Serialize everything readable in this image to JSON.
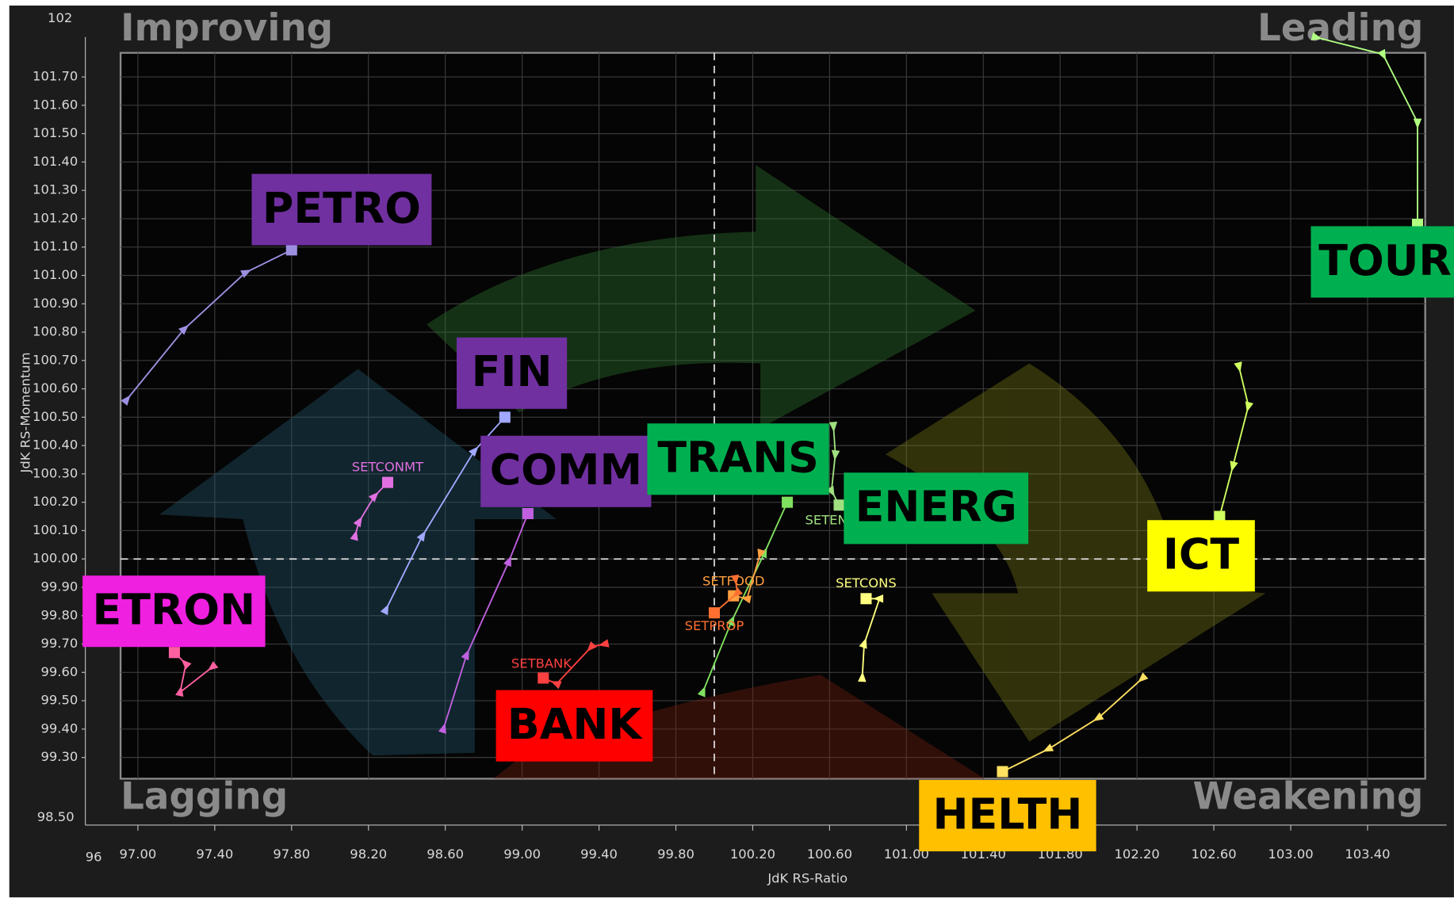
{
  "chart_data": {
    "type": "rrg",
    "quadrants": {
      "top_left": "Improving",
      "top_right": "Leading",
      "bottom_left": "Lagging",
      "bottom_right": "Weakening"
    },
    "x_label": "JdK RS-Ratio",
    "y_label": "JdK RS-Momentum",
    "axis_break_labels": {
      "y_top": "102",
      "y_bottom": "98.50",
      "x_left": "96"
    },
    "xlim": [
      96.91,
      103.7
    ],
    "ylim": [
      99.225,
      101.785
    ],
    "x_center": 100,
    "y_center": 100,
    "grid": true,
    "xticks": [
      {
        "value": 97.0,
        "label": "97.00"
      },
      {
        "value": 97.4,
        "label": "97.40"
      },
      {
        "value": 97.8,
        "label": "97.80"
      },
      {
        "value": 98.2,
        "label": "98.20"
      },
      {
        "value": 98.6,
        "label": "98.60"
      },
      {
        "value": 99.0,
        "label": "99.00"
      },
      {
        "value": 99.4,
        "label": "99.40"
      },
      {
        "value": 99.8,
        "label": "99.80"
      },
      {
        "value": 100.2,
        "label": "100.20"
      },
      {
        "value": 100.6,
        "label": "100.60"
      },
      {
        "value": 101.0,
        "label": "101.00"
      },
      {
        "value": 101.4,
        "label": "101.40"
      },
      {
        "value": 101.8,
        "label": "101.80"
      },
      {
        "value": 102.2,
        "label": "102.20"
      },
      {
        "value": 102.6,
        "label": "102.60"
      },
      {
        "value": 103.0,
        "label": "103.00"
      },
      {
        "value": 103.4,
        "label": "103.40"
      }
    ],
    "yticks": [
      {
        "value": 99.3,
        "label": "99.30"
      },
      {
        "value": 99.4,
        "label": "99.40"
      },
      {
        "value": 99.5,
        "label": "99.50"
      },
      {
        "value": 99.6,
        "label": "99.60"
      },
      {
        "value": 99.7,
        "label": "99.70"
      },
      {
        "value": 99.8,
        "label": "99.80"
      },
      {
        "value": 99.9,
        "label": "99.90"
      },
      {
        "value": 100.0,
        "label": "100.00"
      },
      {
        "value": 100.1,
        "label": "100.10"
      },
      {
        "value": 100.2,
        "label": "100.20"
      },
      {
        "value": 100.3,
        "label": "100.30"
      },
      {
        "value": 100.4,
        "label": "100.40"
      },
      {
        "value": 100.5,
        "label": "100.50"
      },
      {
        "value": 100.6,
        "label": "100.60"
      },
      {
        "value": 100.7,
        "label": "100.70"
      },
      {
        "value": 100.8,
        "label": "100.80"
      },
      {
        "value": 100.9,
        "label": "100.90"
      },
      {
        "value": 101.0,
        "label": "101.00"
      },
      {
        "value": 101.1,
        "label": "101.10"
      },
      {
        "value": 101.2,
        "label": "101.20"
      },
      {
        "value": 101.3,
        "label": "101.30"
      },
      {
        "value": 101.4,
        "label": "101.40"
      },
      {
        "value": 101.5,
        "label": "101.50"
      },
      {
        "value": 101.6,
        "label": "101.60"
      },
      {
        "value": 101.7,
        "label": "101.70"
      }
    ],
    "series": [
      {
        "name": "PETRO",
        "color": "#9d8fe0",
        "box_color": "#7030a0",
        "x": [
          96.94,
          97.24,
          97.56,
          97.8
        ],
        "values": [
          100.56,
          100.81,
          101.01,
          101.09
        ]
      },
      {
        "name": "FIN",
        "color": "#a0a8ff",
        "box_color": "#7030a0",
        "x": [
          98.29,
          98.48,
          98.75,
          98.91
        ],
        "values": [
          99.82,
          100.08,
          100.38,
          100.5
        ]
      },
      {
        "name": "COMM",
        "color": "#c060e0",
        "box_color": "#7030a0",
        "x": [
          98.59,
          98.71,
          98.93,
          99.03
        ],
        "values": [
          99.4,
          99.66,
          99.99,
          100.16
        ]
      },
      {
        "name": "SETCONMT",
        "color": "#e070e0",
        "x": [
          98.13,
          98.15,
          98.23,
          98.3
        ],
        "values": [
          100.08,
          100.13,
          100.22,
          100.27
        ]
      },
      {
        "name": "ETRON",
        "color": "#ff60a0",
        "box_color": "#f020e0",
        "x": [
          97.39,
          97.22,
          97.25,
          97.19
        ],
        "values": [
          99.62,
          99.53,
          99.63,
          99.67
        ]
      },
      {
        "name": "BANK",
        "code": "SETBANK",
        "color": "#ff4040",
        "box_color": "#ff0000",
        "x": [
          99.43,
          99.36,
          99.18,
          99.11
        ],
        "values": [
          99.7,
          99.69,
          99.56,
          99.58
        ]
      },
      {
        "name": "TRANS",
        "color": "#80e060",
        "box_color": "#00b050",
        "x": [
          99.94,
          100.09,
          100.26,
          100.38
        ],
        "values": [
          99.53,
          99.78,
          100.02,
          100.2
        ]
      },
      {
        "name": "ENERG",
        "code": "SETEN",
        "color": "#a0e080",
        "box_color": "#00b050",
        "x": [
          100.62,
          100.63,
          100.61,
          100.65
        ],
        "values": [
          100.47,
          100.37,
          100.24,
          100.19
        ]
      },
      {
        "name": "SETFOOD",
        "color": "#ffa040",
        "x": [
          100.24,
          100.17,
          100.1
        ],
        "values": [
          100.02,
          99.86,
          99.87
        ]
      },
      {
        "name": "SETPROP",
        "color": "#ff7030",
        "x": [
          100.11,
          100.12,
          100.0
        ],
        "values": [
          99.93,
          99.88,
          99.81
        ]
      },
      {
        "name": "SETCONS",
        "color": "#ffff80",
        "x": [
          100.77,
          100.78,
          100.86,
          100.79
        ],
        "values": [
          99.58,
          99.7,
          99.86,
          99.86
        ]
      },
      {
        "name": "ICT",
        "color": "#d0ff60",
        "box_color": "#ffff00",
        "x": [
          102.73,
          102.78,
          102.7,
          102.63
        ],
        "values": [
          100.68,
          100.54,
          100.33,
          100.15
        ]
      },
      {
        "name": "HELTH",
        "color": "#ffe060",
        "box_color": "#ffc000",
        "x": [
          102.23,
          102.0,
          101.74,
          101.5
        ],
        "values": [
          99.58,
          99.44,
          99.33,
          99.25
        ]
      },
      {
        "name": "TOUR",
        "color": "#b0ff80",
        "box_color": "#00b050",
        "x": [
          103.13,
          103.48,
          103.66,
          103.66
        ],
        "values": [
          101.84,
          101.78,
          101.54,
          101.18
        ]
      }
    ]
  }
}
